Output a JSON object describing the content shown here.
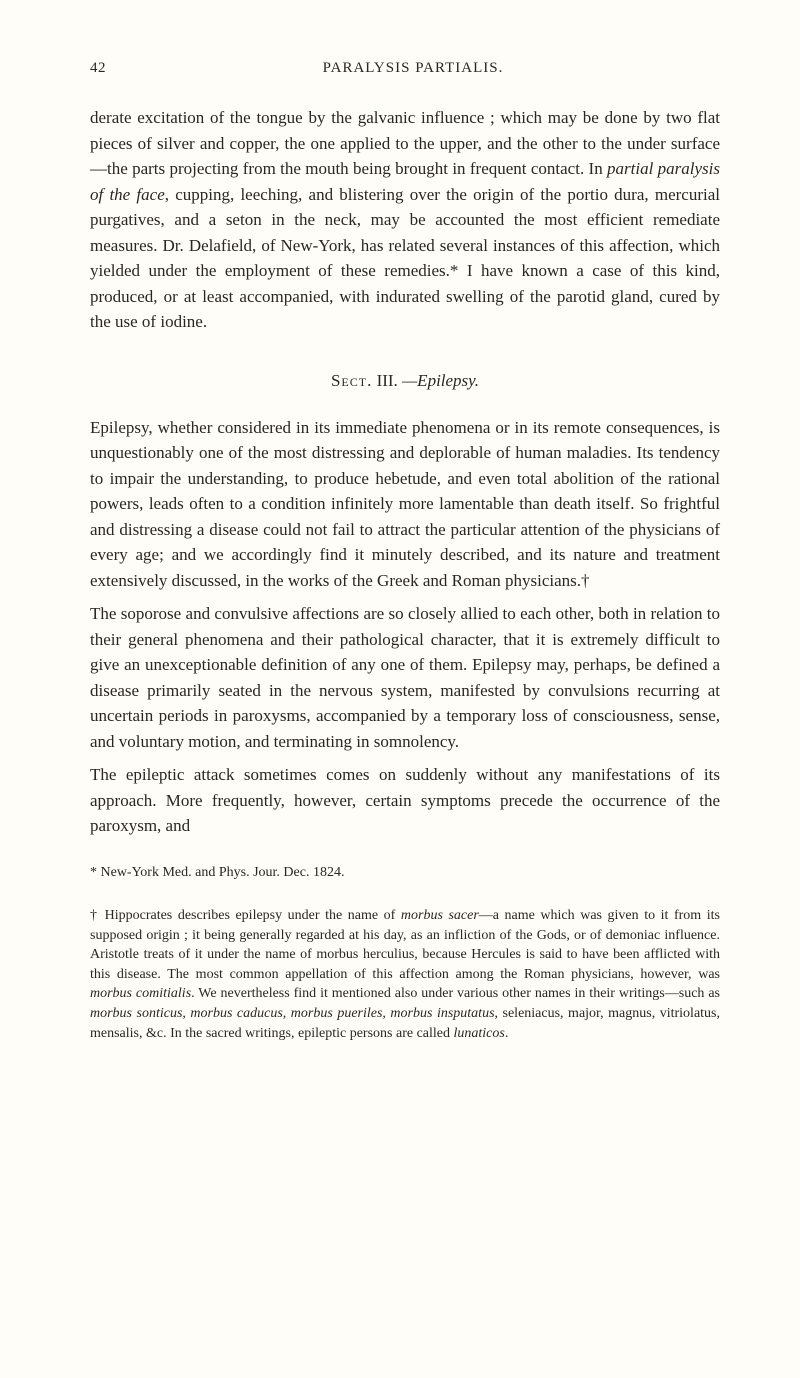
{
  "page_number": "42",
  "header_title": "PARALYSIS PARTIALIS.",
  "body_paragraphs": [
    {
      "segments": [
        {
          "text": "derate excitation of the tongue by the galvanic influence ; which may be done by two flat pieces of silver and copper, the one applied to the upper, and the other to the under surface—the parts projecting from the mouth being brought in frequent contact. In ",
          "italic": false
        },
        {
          "text": "partial paralysis of the face",
          "italic": true
        },
        {
          "text": ", cupping, leeching, and blistering over the origin of the portio dura, mercurial purgatives, and a seton in the neck, may be accounted the most efficient remediate measures. Dr. Delafield, of New-York, has related several instances of this affection, which yielded under the employment of these remedies.* I have known a case of this kind, produced, or at least accompanied, with indurated swelling of the parotid gland, cured by the use of iodine.",
          "italic": false
        }
      ]
    }
  ],
  "section_heading": {
    "label": "Sect.",
    "number": "III.",
    "title": "—Epilepsy."
  },
  "section_paragraphs": [
    {
      "segments": [
        {
          "text": "Epilepsy, whether considered in its immediate phenomena or in its remote consequences, is unquestionably one of the most distressing and deplorable of human maladies. Its tendency to impair the understanding, to produce hebetude, and even total abolition of the rational powers, leads often to a condition infinitely more lamentable than death itself. So frightful and distressing a disease could not fail to attract the particular attention of the physicians of every age; and we accordingly find it minutely described, and its nature and treatment extensively discussed, in the works of the Greek and Roman physicians.†",
          "italic": false
        }
      ]
    },
    {
      "segments": [
        {
          "text": "The soporose and convulsive affections are so closely allied to each other, both in relation to their general phenomena and their pathological character, that it is extremely difficult to give an unexceptionable definition of any one of them. Epilepsy may, perhaps, be defined a disease primarily seated in the nervous system, manifested by convulsions recurring at uncertain periods in paroxysms, accompanied by a temporary loss of consciousness, sense, and voluntary motion, and terminating in somnolency.",
          "italic": false
        }
      ]
    },
    {
      "segments": [
        {
          "text": "The epileptic attack sometimes comes on suddenly without any manifestations of its approach. More frequently, however, certain symptoms precede the occurrence of the paroxysm, and",
          "italic": false
        }
      ]
    }
  ],
  "footnotes": [
    {
      "segments": [
        {
          "text": "* New-York Med. and Phys. Jour. Dec. 1824.",
          "italic": false
        }
      ]
    },
    {
      "segments": [
        {
          "text": "† Hippocrates describes epilepsy under the name of ",
          "italic": false
        },
        {
          "text": "morbus sacer",
          "italic": true
        },
        {
          "text": "—a name which was given to it from its supposed origin ; it being generally regarded at his day, as an infliction of the Gods, or of demoniac influence. Aristotle treats of it under the name of morbus herculius, because Hercules is said to have been afflicted with this disease. The most common appellation of this affection among the Roman physicians, however, was ",
          "italic": false
        },
        {
          "text": "morbus comitialis",
          "italic": true
        },
        {
          "text": ". We nevertheless find it mentioned also under various other names in their writings—such as ",
          "italic": false
        },
        {
          "text": "morbus sonticus, morbus caducus, morbus pueriles, morbus insputatus",
          "italic": true
        },
        {
          "text": ", seleniacus, major, magnus, vitriolatus, mensalis, &c. In the sacred writings, epileptic persons are called ",
          "italic": false
        },
        {
          "text": "lunaticos",
          "italic": true
        },
        {
          "text": ".",
          "italic": false
        }
      ]
    }
  ]
}
